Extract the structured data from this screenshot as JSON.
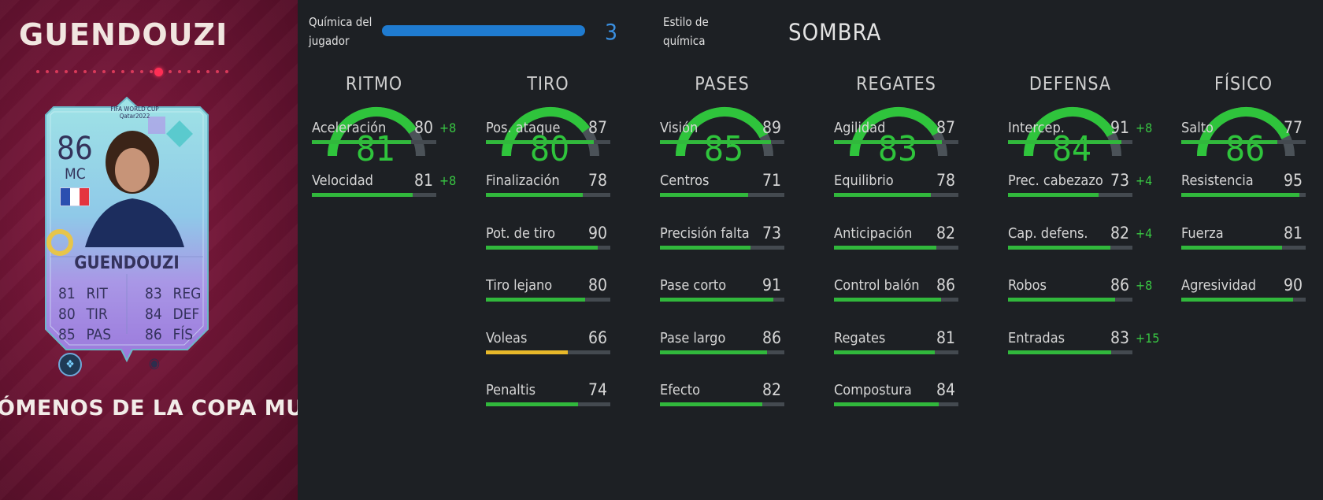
{
  "card": {
    "name_header": "GUENDOUZI",
    "rating": "86",
    "position": "MC",
    "card_name": "GUENDOUZI",
    "world_cup_logo": "FIFA WORLD CUP Qatar2022",
    "stats_left": [
      {
        "value": "81",
        "label": "RIT"
      },
      {
        "value": "80",
        "label": "TIR"
      },
      {
        "value": "85",
        "label": "PAS"
      }
    ],
    "stats_right": [
      {
        "value": "83",
        "label": "REG"
      },
      {
        "value": "84",
        "label": "DEF"
      },
      {
        "value": "86",
        "label": "FÍS"
      }
    ],
    "footer_title": "ÓMENOS DE LA COPA MU",
    "colors": {
      "panel": "#6e1535",
      "card": "#8fd8e0",
      "card_lower": "#b59ce8"
    },
    "icons": [
      "france-flag-icon",
      "rarity-badge-icon",
      "chemistry-style-icon"
    ]
  },
  "header": {
    "chemistry_label_line1": "Química del",
    "chemistry_label_line2": "jugador",
    "chemistry_value": "3",
    "chemistry_fill": 1.0,
    "style_label_line1": "Estilo de",
    "style_label_line2": "química",
    "style_value": "SOMBRA"
  },
  "colors": {
    "accent_green": "#2fc43c",
    "accent_blue": "#1f7bd0",
    "bar_yellow": "#e7b82a",
    "track": "#444a50"
  },
  "categories": [
    {
      "title": "RITMO",
      "value": "81",
      "stats": [
        {
          "name": "Aceleración",
          "value": "80",
          "bonus": "+8"
        },
        {
          "name": "Velocidad",
          "value": "81",
          "bonus": "+8"
        }
      ]
    },
    {
      "title": "TIRO",
      "value": "80",
      "stats": [
        {
          "name": "Pos. ataque",
          "value": "87",
          "bonus": ""
        },
        {
          "name": "Finalización",
          "value": "78",
          "bonus": ""
        },
        {
          "name": "Pot. de tiro",
          "value": "90",
          "bonus": ""
        },
        {
          "name": "Tiro lejano",
          "value": "80",
          "bonus": ""
        },
        {
          "name": "Voleas",
          "value": "66",
          "bonus": ""
        },
        {
          "name": "Penaltis",
          "value": "74",
          "bonus": ""
        }
      ]
    },
    {
      "title": "PASES",
      "value": "85",
      "stats": [
        {
          "name": "Visión",
          "value": "89",
          "bonus": ""
        },
        {
          "name": "Centros",
          "value": "71",
          "bonus": ""
        },
        {
          "name": "Precisión falta",
          "value": "73",
          "bonus": ""
        },
        {
          "name": "Pase corto",
          "value": "91",
          "bonus": ""
        },
        {
          "name": "Pase largo",
          "value": "86",
          "bonus": ""
        },
        {
          "name": "Efecto",
          "value": "82",
          "bonus": ""
        }
      ]
    },
    {
      "title": "REGATES",
      "value": "83",
      "stats": [
        {
          "name": "Agilidad",
          "value": "87",
          "bonus": ""
        },
        {
          "name": "Equilibrio",
          "value": "78",
          "bonus": ""
        },
        {
          "name": "Anticipación",
          "value": "82",
          "bonus": ""
        },
        {
          "name": "Control balón",
          "value": "86",
          "bonus": ""
        },
        {
          "name": "Regates",
          "value": "81",
          "bonus": ""
        },
        {
          "name": "Compostura",
          "value": "84",
          "bonus": ""
        }
      ]
    },
    {
      "title": "DEFENSA",
      "value": "84",
      "stats": [
        {
          "name": "Intercep.",
          "value": "91",
          "bonus": "+8"
        },
        {
          "name": "Prec. cabezazo",
          "value": "73",
          "bonus": "+4"
        },
        {
          "name": "Cap. defens.",
          "value": "82",
          "bonus": "+4"
        },
        {
          "name": "Robos",
          "value": "86",
          "bonus": "+8"
        },
        {
          "name": "Entradas",
          "value": "83",
          "bonus": "+15"
        }
      ]
    },
    {
      "title": "FÍSICO",
      "value": "86",
      "stats": [
        {
          "name": "Salto",
          "value": "77",
          "bonus": ""
        },
        {
          "name": "Resistencia",
          "value": "95",
          "bonus": ""
        },
        {
          "name": "Fuerza",
          "value": "81",
          "bonus": ""
        },
        {
          "name": "Agresividad",
          "value": "90",
          "bonus": ""
        }
      ]
    }
  ]
}
